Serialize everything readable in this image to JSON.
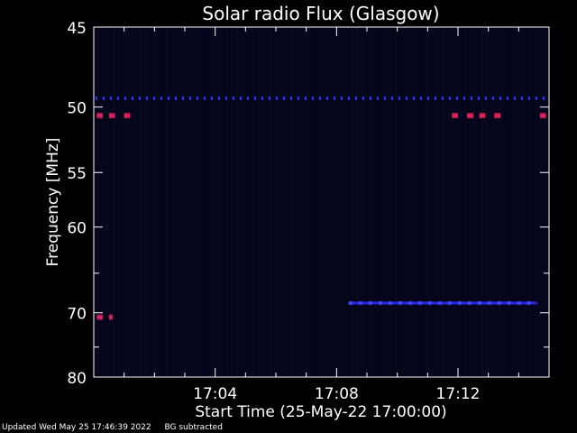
{
  "chart_data": {
    "type": "heatmap",
    "title": "Solar radio Flux (Glasgow)",
    "xlabel": "Start Time (25-May-22 17:00:00)",
    "ylabel": "Frequency [MHz]",
    "x_range_minutes": [
      0.0,
      15.0
    ],
    "y_range_mhz": [
      45,
      80
    ],
    "y_scale": "reciprocal",
    "x_tick_labels": [
      {
        "minute": 4,
        "label": "17:04"
      },
      {
        "minute": 8,
        "label": "17:08"
      },
      {
        "minute": 12,
        "label": "17:12"
      }
    ],
    "y_tick_labels": [
      {
        "mhz": 45,
        "label": "45"
      },
      {
        "mhz": 50,
        "label": "50"
      },
      {
        "mhz": 55,
        "label": "55"
      },
      {
        "mhz": 60,
        "label": "60"
      },
      {
        "mhz": 70,
        "label": "70"
      },
      {
        "mhz": 80,
        "label": "80"
      }
    ],
    "y_minor_ticks_mhz": [
      65,
      75
    ],
    "colors": {
      "background": "#000000",
      "plot_background": "#05051a",
      "axes": "#ffffff",
      "emission_low": "#1a1aff",
      "emission_mid": "#3030ff",
      "emission_high": "#c01850"
    },
    "features": [
      {
        "kind": "band",
        "name": "persistent band",
        "mhz": 49.4,
        "minute_start": 0.0,
        "minute_end": 15.0,
        "intensity": "mid",
        "dashed": true
      },
      {
        "kind": "band",
        "name": "drifting band",
        "mhz": 68.7,
        "minute_start": 8.4,
        "minute_end": 14.6,
        "intensity": "mid",
        "dashed": false
      },
      {
        "kind": "spot",
        "mhz": 50.6,
        "minute_start": 0.1,
        "minute_end": 0.3,
        "intensity": "high"
      },
      {
        "kind": "spot",
        "mhz": 50.6,
        "minute_start": 0.5,
        "minute_end": 0.7,
        "intensity": "high"
      },
      {
        "kind": "spot",
        "mhz": 50.6,
        "minute_start": 1.0,
        "minute_end": 1.2,
        "intensity": "high"
      },
      {
        "kind": "spot",
        "mhz": 50.6,
        "minute_start": 11.8,
        "minute_end": 12.0,
        "intensity": "high"
      },
      {
        "kind": "spot",
        "mhz": 50.6,
        "minute_start": 12.3,
        "minute_end": 12.5,
        "intensity": "high"
      },
      {
        "kind": "spot",
        "mhz": 50.6,
        "minute_start": 12.7,
        "minute_end": 12.9,
        "intensity": "high"
      },
      {
        "kind": "spot",
        "mhz": 50.6,
        "minute_start": 13.2,
        "minute_end": 13.4,
        "intensity": "high"
      },
      {
        "kind": "spot",
        "mhz": 50.6,
        "minute_start": 14.7,
        "minute_end": 14.9,
        "intensity": "high"
      },
      {
        "kind": "spot",
        "mhz": 70.6,
        "minute_start": 0.1,
        "minute_end": 0.3,
        "intensity": "high"
      },
      {
        "kind": "spot",
        "mhz": 70.6,
        "minute_start": 0.5,
        "minute_end": 0.6,
        "intensity": "high"
      }
    ]
  },
  "footer": {
    "updated": "Updated Wed May 25 17:46:39 2022",
    "note": "BG subtracted"
  }
}
